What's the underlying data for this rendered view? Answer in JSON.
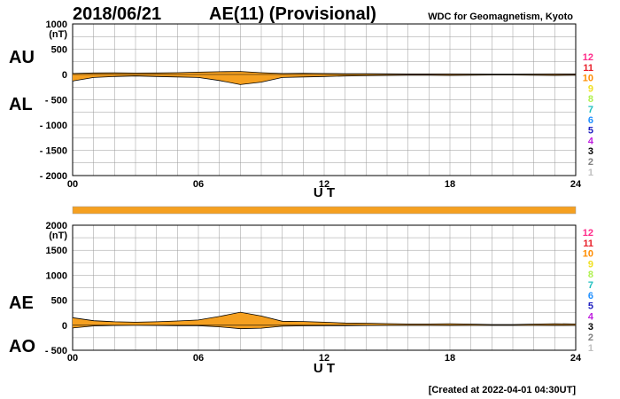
{
  "header": {
    "date": "2018/06/21",
    "title": "AE(11) (Provisional)",
    "source": "WDC for Geomagnetism, Kyoto"
  },
  "footer": {
    "created": "[Created at 2022-04-01 04:30UT]"
  },
  "colors": {
    "fill": "#f5a020",
    "grid": "#999999",
    "levels": [
      "#ff2b8a",
      "#e8202a",
      "#ff8c00",
      "#f0e020",
      "#b0f050",
      "#20c0c0",
      "#2090ff",
      "#2020c0",
      "#c020e0",
      "#000000",
      "#808080",
      "#c0c0c0"
    ]
  },
  "station_levels": [
    "12",
    "11",
    "10",
    "9",
    "8",
    "7",
    "6",
    "5",
    "4",
    "3",
    "2",
    "1"
  ],
  "chart_data": [
    {
      "type": "area",
      "panel": "AU/AL",
      "series": [
        {
          "name": "AU",
          "values": [
            20,
            30,
            32,
            28,
            30,
            35,
            45,
            55,
            60,
            35,
            20,
            25,
            20,
            15,
            15,
            12,
            10,
            10,
            10,
            8,
            5,
            5,
            8,
            10,
            10
          ]
        },
        {
          "name": "AL",
          "values": [
            -130,
            -60,
            -40,
            -30,
            -40,
            -50,
            -60,
            -120,
            -200,
            -150,
            -60,
            -50,
            -40,
            -30,
            -25,
            -20,
            -15,
            -15,
            -20,
            -15,
            -10,
            -10,
            -15,
            -20,
            -15
          ]
        }
      ],
      "x": [
        0,
        1,
        2,
        3,
        4,
        5,
        6,
        7,
        8,
        9,
        10,
        11,
        12,
        13,
        14,
        15,
        16,
        17,
        18,
        19,
        20,
        21,
        22,
        23,
        24
      ],
      "xlabel": "U T",
      "ylabel": "(nT)",
      "ylim": [
        -2000,
        1000
      ],
      "yticks": [
        "1000",
        "500",
        "0",
        "- 500",
        "- 1000",
        "- 1500",
        "- 2000"
      ],
      "xticks": [
        "00",
        "06",
        "12",
        "18",
        "24"
      ],
      "side_labels": [
        "AU",
        "AL"
      ],
      "grid": true
    },
    {
      "type": "area",
      "panel": "AE/AO",
      "series": [
        {
          "name": "AE",
          "values": [
            150,
            90,
            70,
            60,
            70,
            85,
            105,
            175,
            260,
            185,
            80,
            75,
            60,
            45,
            40,
            32,
            25,
            25,
            30,
            23,
            15,
            15,
            23,
            30,
            25
          ]
        },
        {
          "name": "AO",
          "values": [
            -55,
            -15,
            -5,
            -1,
            -5,
            -8,
            -8,
            -32,
            -70,
            -58,
            -20,
            -12,
            -10,
            -8,
            -5,
            -4,
            -3,
            -3,
            -5,
            -4,
            -3,
            -3,
            -4,
            -5,
            -3
          ]
        }
      ],
      "x": [
        0,
        1,
        2,
        3,
        4,
        5,
        6,
        7,
        8,
        9,
        10,
        11,
        12,
        13,
        14,
        15,
        16,
        17,
        18,
        19,
        20,
        21,
        22,
        23,
        24
      ],
      "xlabel": "U T",
      "ylabel": "(nT)",
      "ylim": [
        -500,
        2000
      ],
      "yticks": [
        "2000",
        "1500",
        "1000",
        "500",
        "0",
        "- 500"
      ],
      "xticks": [
        "00",
        "06",
        "12",
        "18",
        "24"
      ],
      "side_labels": [
        "AE",
        "AO"
      ],
      "grid": true
    }
  ]
}
